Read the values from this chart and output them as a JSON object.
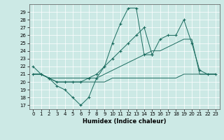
{
  "xlabel": "Humidex (Indice chaleur)",
  "xlim": [
    -0.5,
    23.5
  ],
  "ylim": [
    16.5,
    30
  ],
  "yticks": [
    17,
    18,
    19,
    20,
    21,
    22,
    23,
    24,
    25,
    26,
    27,
    28,
    29
  ],
  "xticks": [
    0,
    1,
    2,
    3,
    4,
    5,
    6,
    7,
    8,
    9,
    10,
    11,
    12,
    13,
    14,
    15,
    16,
    17,
    18,
    19,
    20,
    21,
    22,
    23
  ],
  "background_color": "#cce9e5",
  "grid_color": "#ffffff",
  "line_color": "#1a6b5e",
  "series": [
    {
      "x": [
        0,
        1,
        2,
        3,
        4,
        5,
        6,
        7,
        8,
        9,
        10,
        11,
        12,
        13,
        14,
        15,
        16,
        17,
        18,
        19,
        20,
        21,
        22,
        23
      ],
      "y": [
        22,
        21,
        20.5,
        19.5,
        19,
        18,
        17,
        18,
        20.5,
        22,
        25,
        27.5,
        29.5,
        29.5,
        23.5,
        23.5,
        null,
        null,
        null,
        null,
        null,
        null,
        null,
        null
      ],
      "marker": true
    },
    {
      "x": [
        0,
        1,
        2,
        3,
        4,
        5,
        6,
        7,
        8,
        9,
        10,
        11,
        12,
        13,
        14,
        15,
        16,
        17,
        18,
        19,
        20,
        21,
        22,
        23
      ],
      "y": [
        21,
        21,
        20.5,
        20,
        20,
        20,
        20,
        20.5,
        21,
        22,
        23,
        24,
        25,
        26,
        27,
        23.5,
        25.5,
        26,
        26,
        28,
        25,
        21.5,
        21,
        21
      ],
      "marker": true
    },
    {
      "x": [
        0,
        1,
        2,
        3,
        4,
        5,
        6,
        7,
        8,
        9,
        10,
        11,
        12,
        13,
        14,
        15,
        16,
        17,
        18,
        19,
        20,
        21,
        22,
        23
      ],
      "y": [
        21,
        21,
        20.5,
        20.5,
        20.5,
        20.5,
        20.5,
        20.5,
        20.5,
        21,
        21.5,
        22,
        22.5,
        23,
        23.5,
        24,
        24,
        24.5,
        25,
        25.5,
        25.5,
        21,
        21,
        21
      ],
      "marker": false
    },
    {
      "x": [
        0,
        1,
        2,
        3,
        4,
        5,
        6,
        7,
        8,
        9,
        10,
        11,
        12,
        13,
        14,
        15,
        16,
        17,
        18,
        19,
        20,
        21,
        22,
        23
      ],
      "y": [
        21,
        21,
        20.5,
        20,
        20,
        20,
        20,
        20,
        20,
        20,
        20.5,
        20.5,
        20.5,
        20.5,
        20.5,
        20.5,
        20.5,
        20.5,
        20.5,
        21,
        21,
        21,
        21,
        21
      ],
      "marker": false
    }
  ]
}
